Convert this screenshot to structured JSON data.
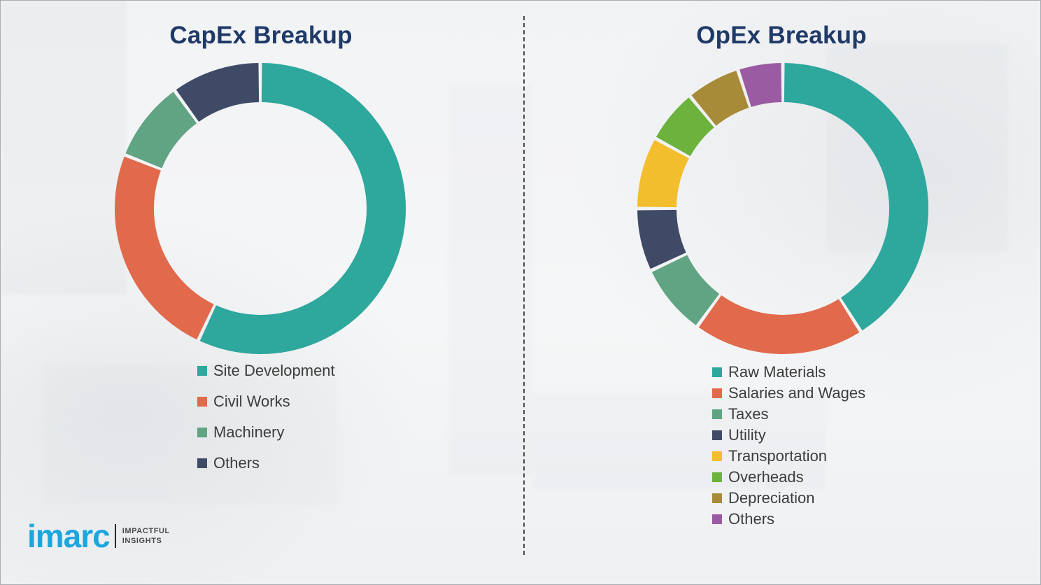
{
  "chart_data": [
    {
      "type": "pie",
      "subtype": "donut",
      "title": "CapEx Breakup",
      "labels": [
        "Site Development",
        "Civil Works",
        "Machinery",
        "Others"
      ],
      "values": [
        57,
        24,
        9,
        10
      ],
      "colors": [
        "#2ea79d",
        "#e06a4b",
        "#61a483",
        "#3f4a66"
      ],
      "legend_position": "bottom-left",
      "data_labels": "none"
    },
    {
      "type": "pie",
      "subtype": "donut",
      "title": "OpEx Breakup",
      "labels": [
        "Raw Materials",
        "Salaries and Wages",
        "Taxes",
        "Utility",
        "Transportation",
        "Overheads",
        "Depreciation",
        "Others"
      ],
      "values": [
        41,
        19,
        8,
        7,
        8,
        6,
        6,
        5
      ],
      "colors": [
        "#2ea79d",
        "#e06a4b",
        "#61a483",
        "#3f4a66",
        "#f3be2e",
        "#6cb23c",
        "#a88b39",
        "#9a5ba3"
      ],
      "legend_position": "bottom-left",
      "data_labels": "none"
    }
  ],
  "logo": {
    "brand": "imarc",
    "tagline_line1": "IMPACTFUL",
    "tagline_line2": "INSIGHTS"
  }
}
